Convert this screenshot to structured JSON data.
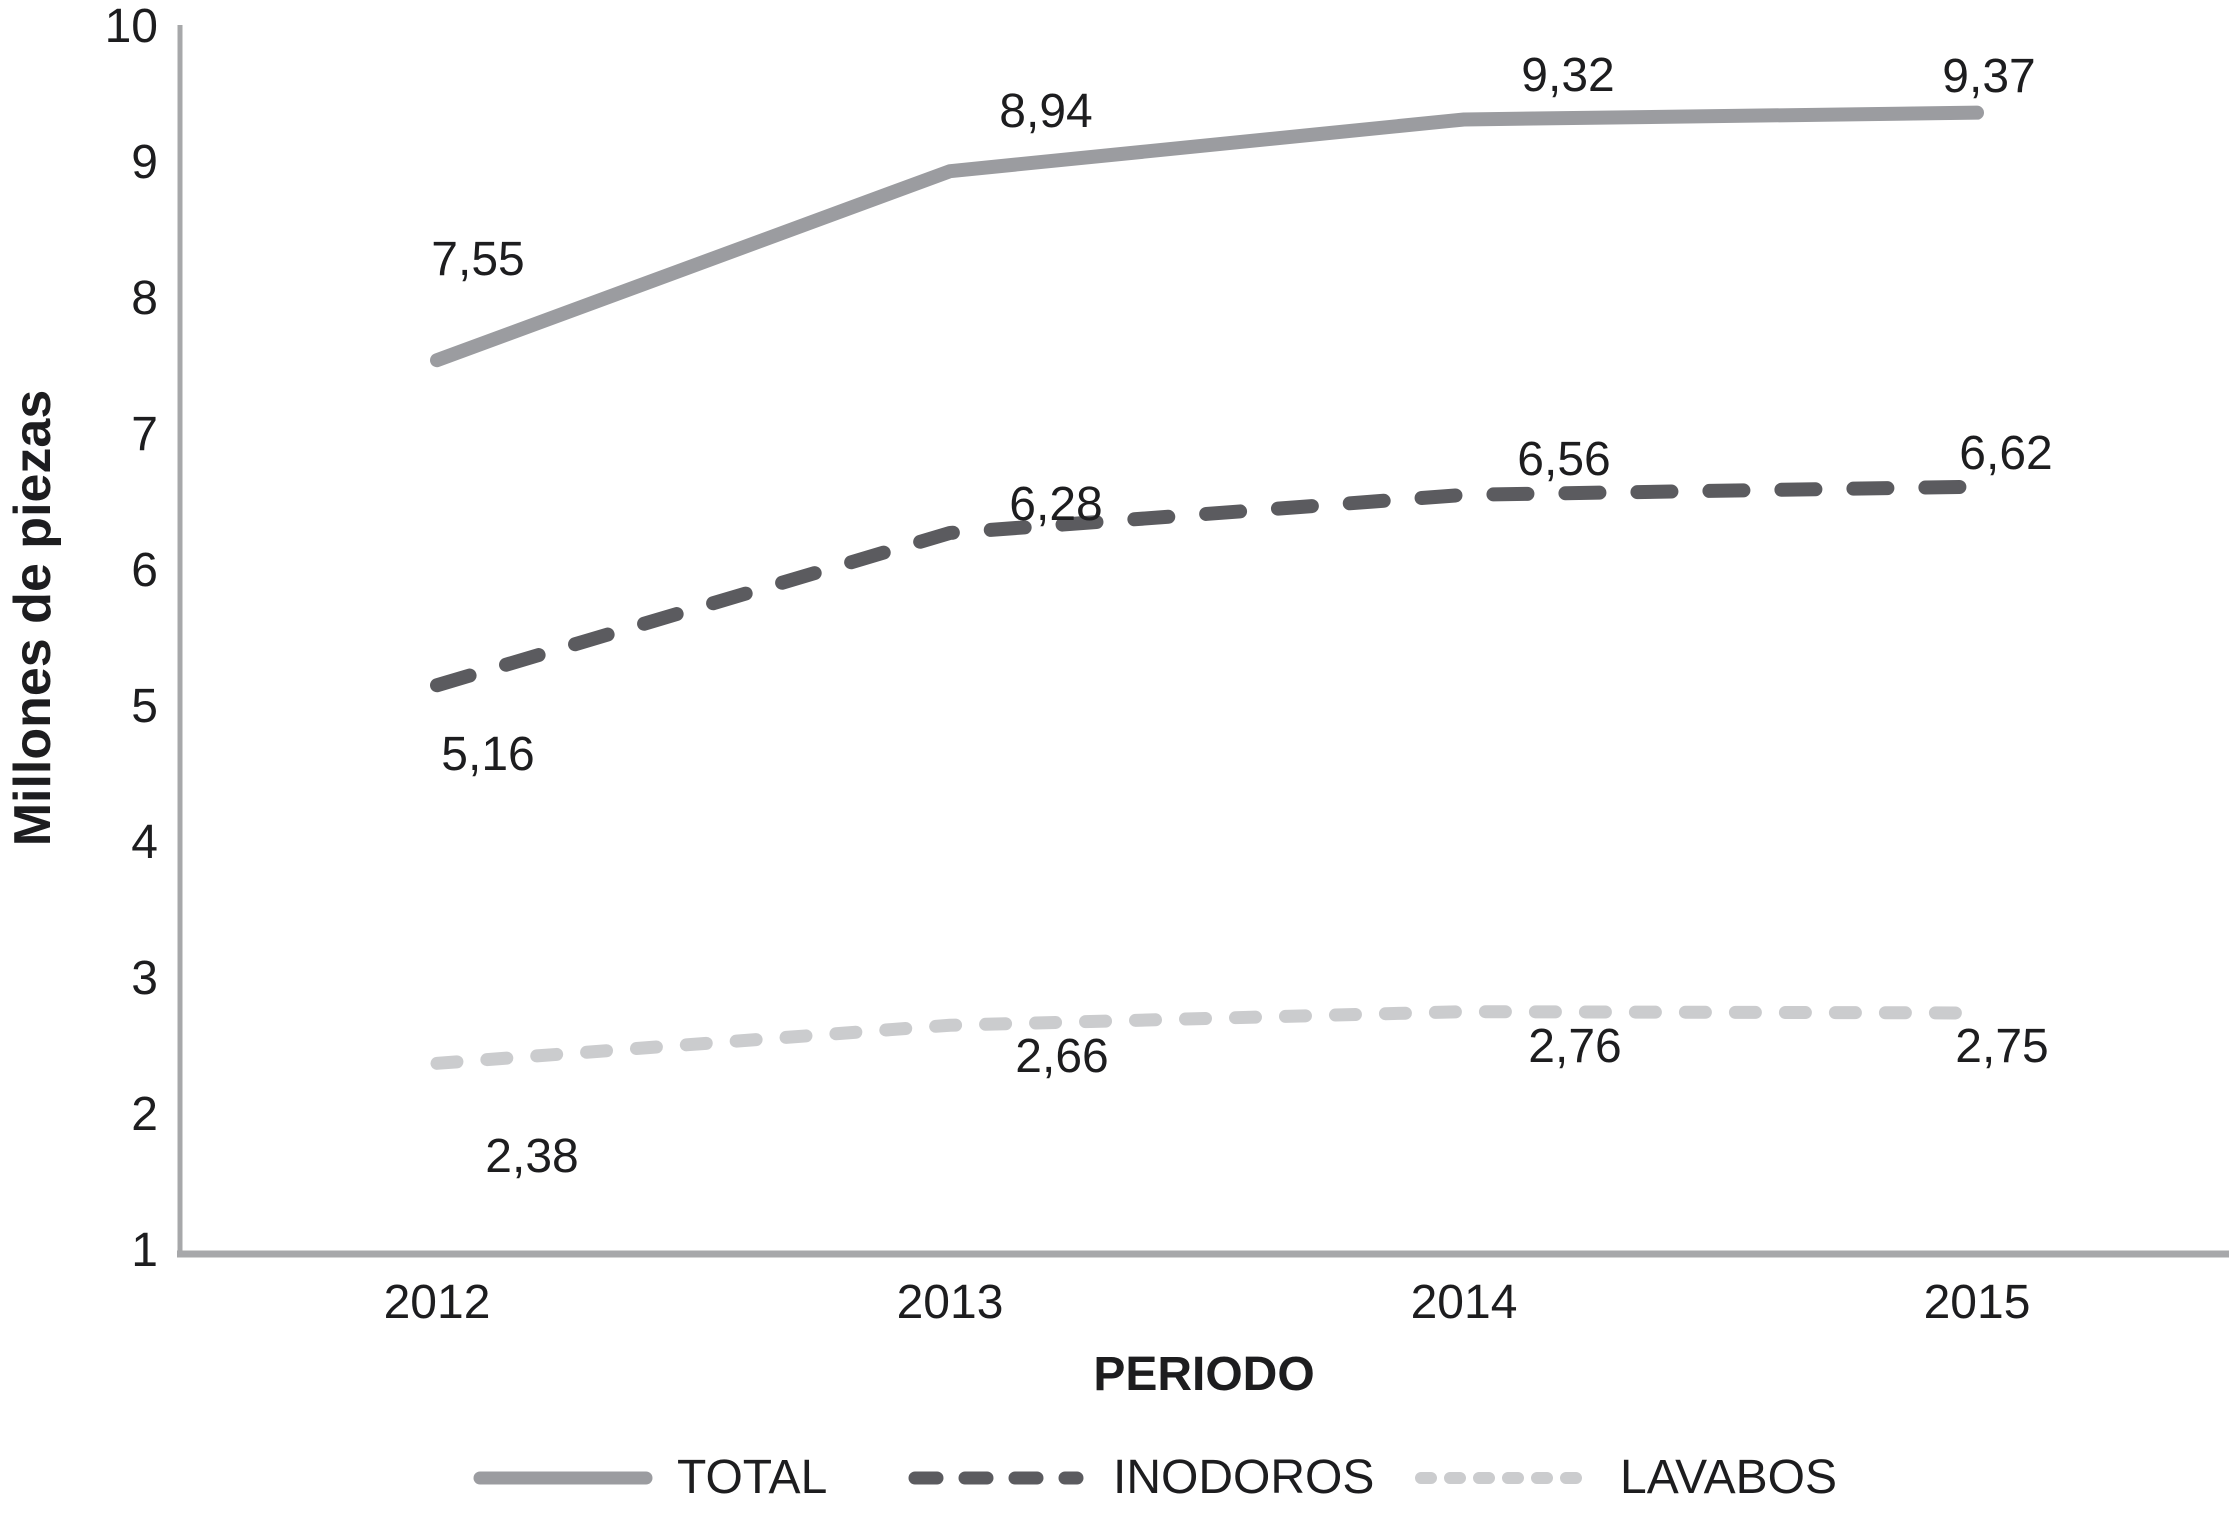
{
  "chart_data": {
    "type": "line",
    "title": "",
    "x_categories": [
      "2012",
      "2013",
      "2014",
      "2015"
    ],
    "xlabel": "PERIODO",
    "ylabel": "Millones de piezas",
    "y_ticks": [
      "10",
      "9",
      "8",
      "7",
      "6",
      "5",
      "4",
      "3",
      "2",
      "1"
    ],
    "ylim": [
      1,
      10
    ],
    "grid": false,
    "legend_position": "bottom",
    "axis_color": "#a7a8aa",
    "text_color": "#1d1d1f",
    "series": [
      {
        "name": "TOTAL",
        "style": "solid",
        "color": "#9b9ca0",
        "values": [
          7.55,
          8.94,
          9.32,
          9.37
        ],
        "point_labels": [
          "7,55",
          "8,94",
          "9,32",
          "9,37"
        ]
      },
      {
        "name": "INODOROS",
        "style": "dashed",
        "color": "#5b5b5f",
        "values": [
          5.16,
          6.28,
          6.56,
          6.62
        ],
        "point_labels": [
          "5,16",
          "6,28",
          "6,56",
          "6,62"
        ]
      },
      {
        "name": "LAVABOS",
        "style": "dashed",
        "color": "#cbccce",
        "values": [
          2.38,
          2.66,
          2.76,
          2.75
        ],
        "point_labels": [
          "2,38",
          "2,66",
          "2,76",
          "2,75"
        ]
      }
    ]
  }
}
